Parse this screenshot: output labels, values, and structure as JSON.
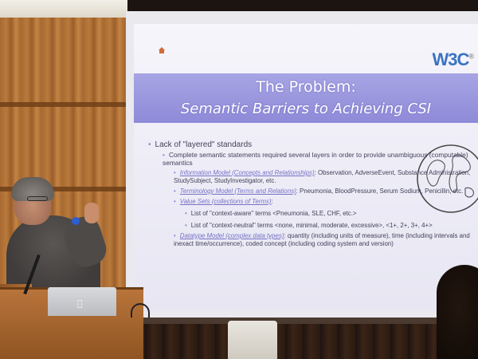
{
  "slide": {
    "logo": "W3C",
    "logo_mark": "®",
    "title_line1": "The Problem:",
    "title_line2": "Semantic Barriers to Achieving CSI",
    "bullets": [
      {
        "level": 1,
        "text": "Lack of \"layered\" standards"
      },
      {
        "level": 2,
        "text": "Complete semantic statements required several layers in order to provide unambiguous (computable) semantics"
      },
      {
        "level": 3,
        "term": "Information Model (Concepts and Relationships)",
        "text": ": Observation, AdverseEvent, Substance Administration, StudySubject, StudyInvestigator, etc."
      },
      {
        "level": 3,
        "term": "Terminology Model (Terms and Relations)",
        "text": ": Pneumonia, BloodPressure, Serum Sodium, Penicillin, etc."
      },
      {
        "level": 3,
        "term": "Value Sets (collections of Terms)",
        "text": ":"
      },
      {
        "level": 4,
        "text": "List of \"context-aware\" terms <Pneumonia, SLE, CHF, etc.>"
      },
      {
        "level": 4,
        "text": "List of \"context-neutral\" terms <none, minimal, moderate, excessive>, <1+, 2+, 3+, 4+>"
      },
      {
        "level": 3,
        "term": "Datatype Model (complex data types)",
        "text": ": quantity (including units of measure), time (including intervals and inexact time/occurrence), coded concept (including coding system and version)"
      }
    ]
  },
  "icons": {
    "home": "home-icon",
    "globe": "globe-icon",
    "laptop": "apple-icon"
  },
  "colors": {
    "title_band": "#8e8ad8",
    "logo": "#3b73c2",
    "text": "#44425a",
    "term": "#7671c6"
  }
}
